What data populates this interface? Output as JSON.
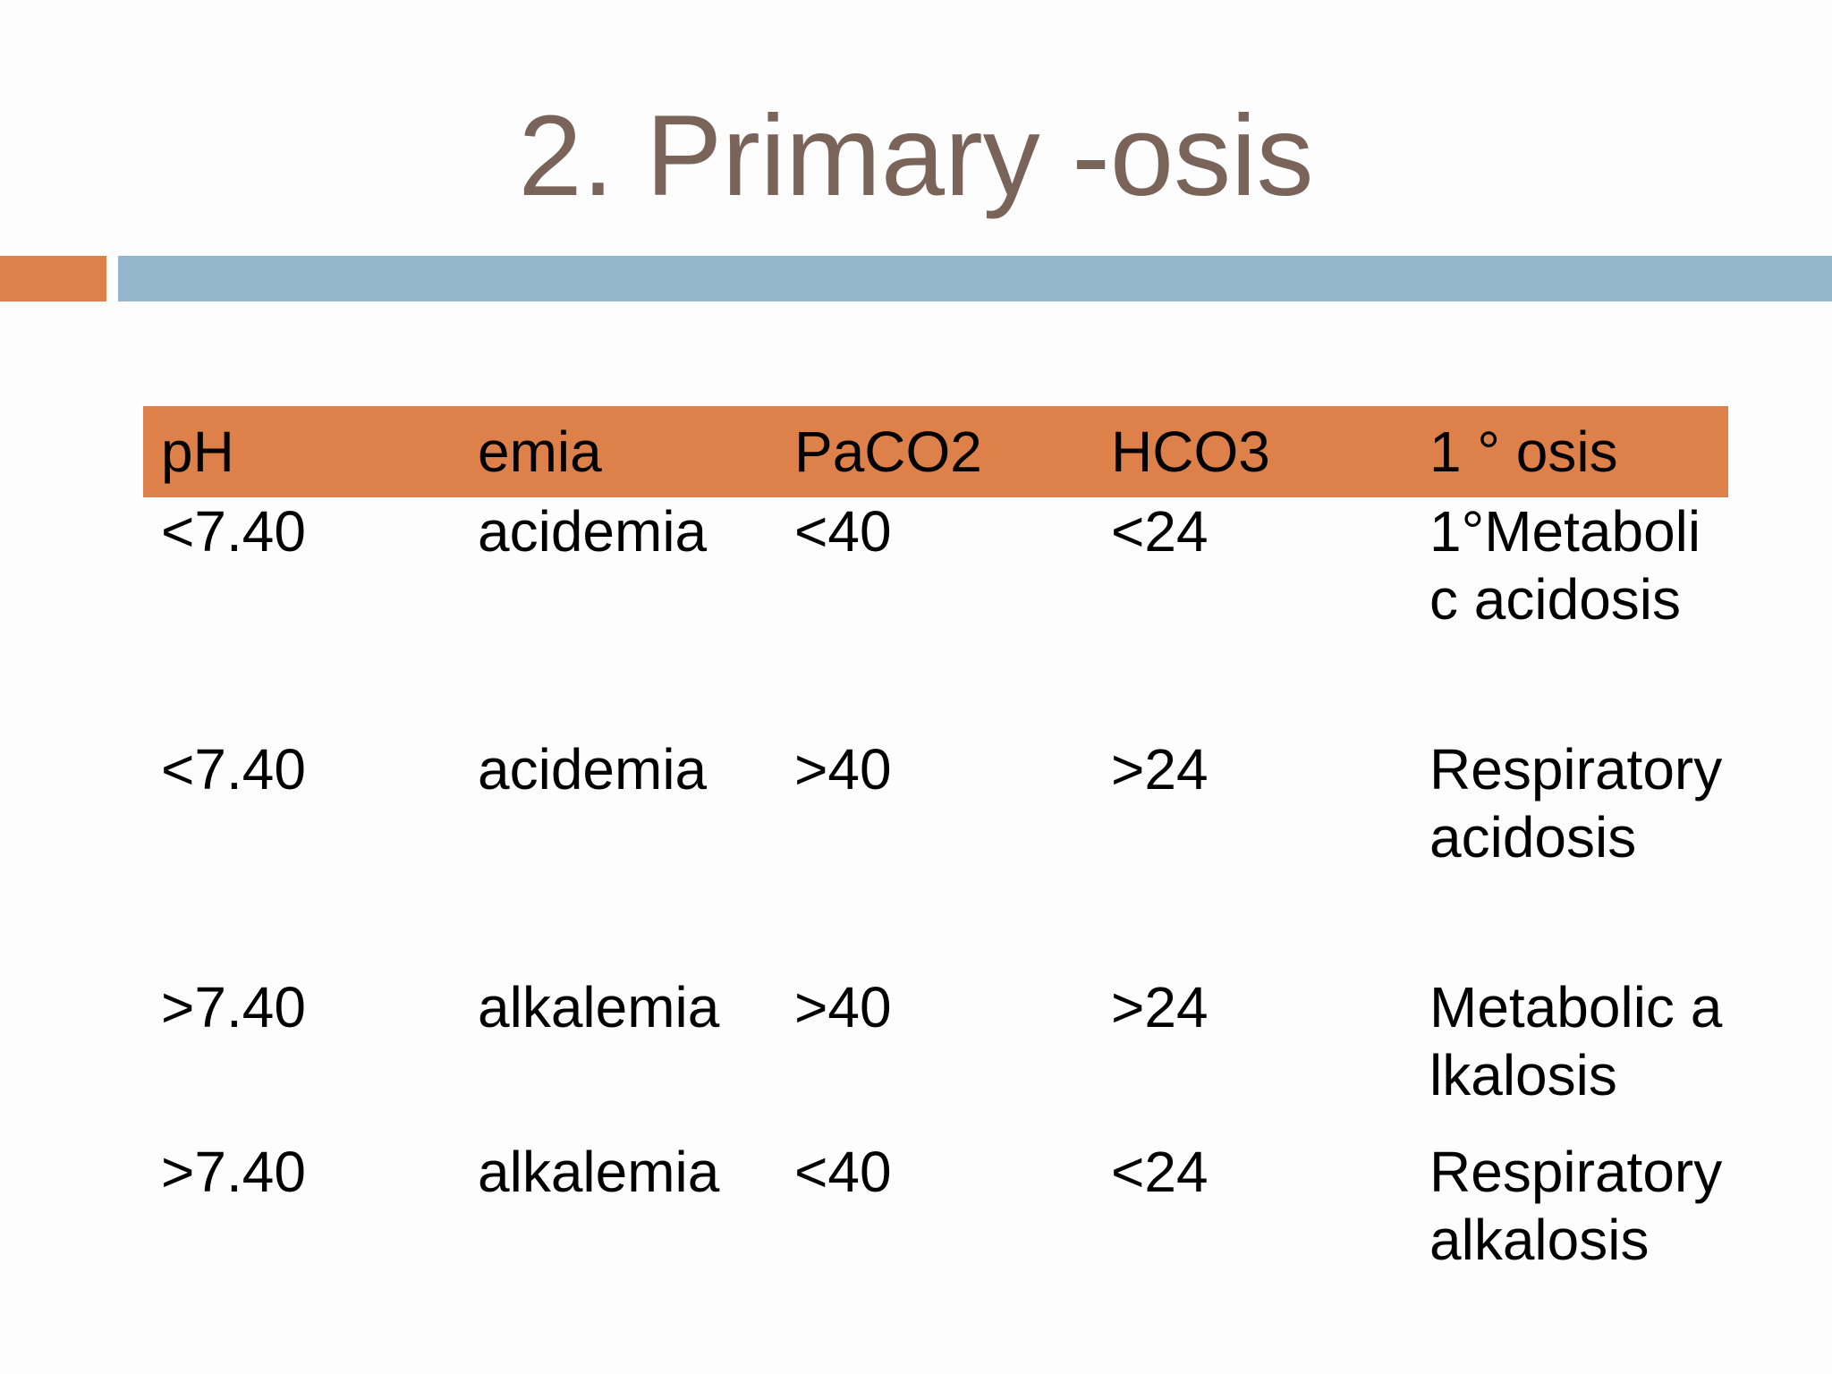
{
  "slide": {
    "title": "2. Primary -osis"
  },
  "table": {
    "headers": [
      "pH",
      "emia",
      "PaCO2",
      "HCO3",
      "1 ° osis"
    ],
    "rows": [
      [
        "<7.40",
        "acidemia",
        "<40",
        "<24",
        "1°Metabolic acidosis"
      ],
      [
        "<7.40",
        "acidemia",
        ">40",
        ">24",
        "Respiratory acidosis"
      ],
      [
        ">7.40",
        "alkalemia",
        ">40",
        ">24",
        "Metabolic alkalosis"
      ],
      [
        ">7.40",
        "alkalemia",
        "<40",
        "<24",
        "Respiratory alkalosis"
      ]
    ]
  },
  "colors": {
    "accent_orange": "#de8049",
    "accent_blue": "#94b6cd",
    "title_color": "#7a645a"
  }
}
